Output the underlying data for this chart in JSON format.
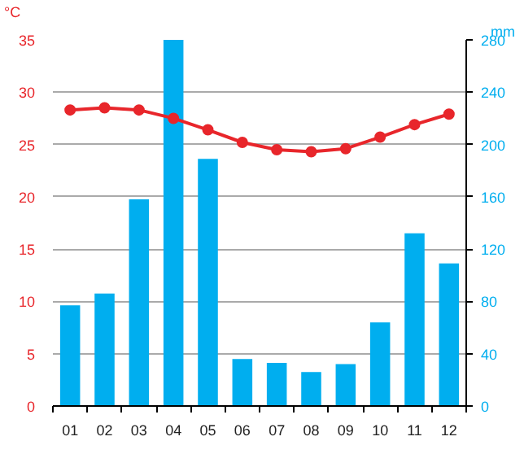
{
  "chart_data": {
    "type": "bar",
    "categories": [
      "01",
      "02",
      "03",
      "04",
      "05",
      "06",
      "07",
      "08",
      "09",
      "10",
      "11",
      "12"
    ],
    "ylabel": "°C",
    "y2label": "mm",
    "ylim": [
      0,
      35
    ],
    "yticks": [
      0,
      5,
      10,
      15,
      20,
      25,
      30,
      35
    ],
    "y2lim": [
      0,
      280
    ],
    "y2ticks": [
      0,
      40,
      80,
      120,
      160,
      200,
      240,
      280
    ],
    "grid": "y",
    "marker": "circle",
    "series": [
      {
        "axis": "y2",
        "color": "#00aeef",
        "values": [
          77,
          86,
          158,
          280,
          189,
          36,
          33,
          26,
          32,
          64,
          132,
          109
        ]
      },
      {
        "type": "line",
        "axis": "y",
        "color": "#e8262b",
        "values": [
          28.3,
          28.5,
          28.3,
          27.5,
          26.4,
          25.2,
          24.5,
          24.3,
          24.6,
          25.7,
          26.9,
          27.9
        ]
      }
    ]
  }
}
